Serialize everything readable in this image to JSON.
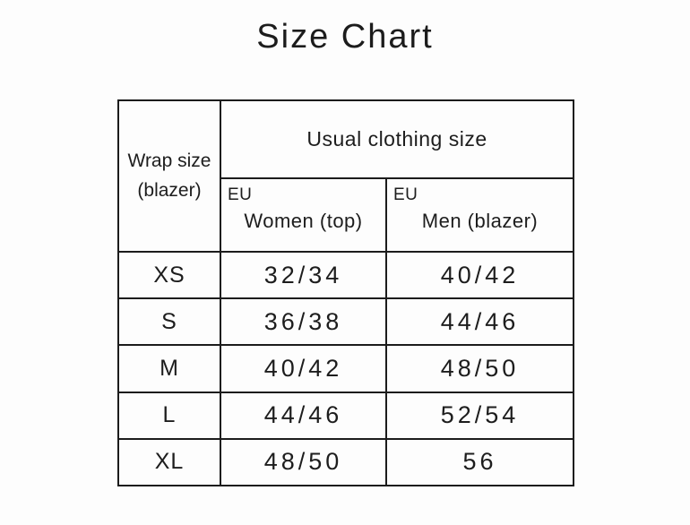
{
  "page": {
    "title": "Size Chart"
  },
  "colors": {
    "background": "#fdfdfd",
    "text": "#1d1d1d",
    "border": "#1c1c1c"
  },
  "table": {
    "corner_header": "Wrap size\n(blazer)",
    "group_header": "Usual clothing size",
    "columns": [
      {
        "region": "EU",
        "label": "Women (top)"
      },
      {
        "region": "EU",
        "label": "Men (blazer)"
      }
    ],
    "rows": [
      {
        "wrap": "XS",
        "women": "32/34",
        "men": "40/42"
      },
      {
        "wrap": "S",
        "women": "36/38",
        "men": "44/46"
      },
      {
        "wrap": "M",
        "women": "40/42",
        "men": "48/50"
      },
      {
        "wrap": "L",
        "women": "44/46",
        "men": "52/54"
      },
      {
        "wrap": "XL",
        "women": "48/50",
        "men": "56"
      }
    ]
  }
}
